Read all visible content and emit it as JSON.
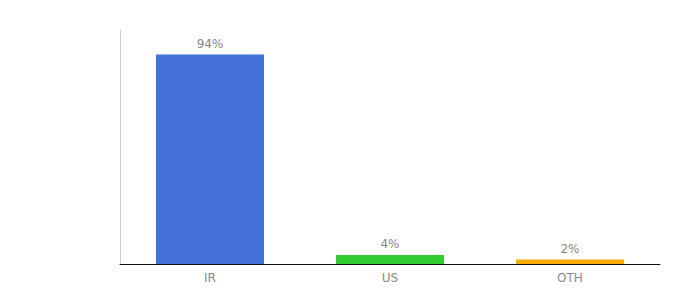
{
  "chart_data": {
    "type": "bar",
    "categories": [
      "IR",
      "US",
      "OTH"
    ],
    "values": [
      94,
      4,
      2
    ],
    "value_labels": [
      "94%",
      "4%",
      "2%"
    ],
    "data_labels": true,
    "colors": [
      "#4472db",
      "#33cc33",
      "#ffaa00"
    ],
    "ylim": [
      0,
      105
    ],
    "tick_labels": "x",
    "grid": false
  }
}
